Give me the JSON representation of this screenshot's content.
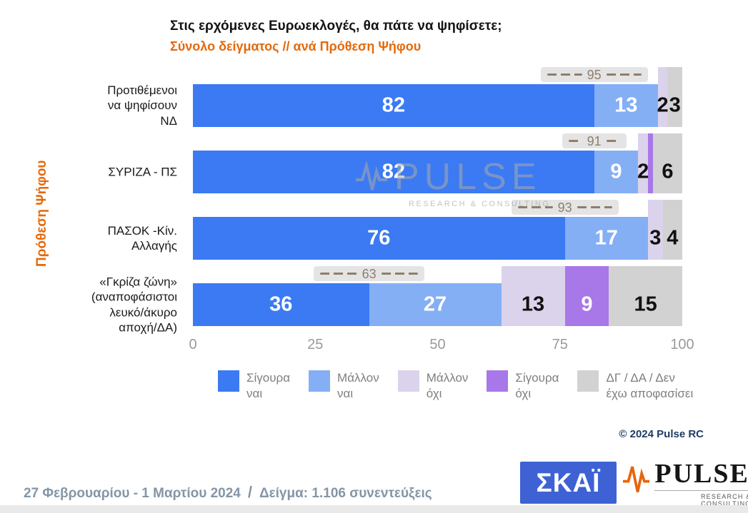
{
  "title": "Στις ερχόμενες Ευρωεκλογές, θα πάτε να ψηφίσετε;",
  "subtitle": "Σύνολο δείγματος // ανά Πρόθεση Ψήφου",
  "y_axis_label": "Πρόθεση Ψήφου",
  "chart_data": {
    "type": "bar",
    "orientation": "horizontal",
    "stacked": true,
    "xlim": [
      0,
      100
    ],
    "x_ticks": [
      0,
      25,
      50,
      75,
      100
    ],
    "grid": false,
    "legend_position": "bottom",
    "categories": [
      "Προτιθέμενοι να ψηφίσουν ΝΔ",
      "ΣΥΡΙΖΑ - ΠΣ",
      "ΠΑΣΟΚ -Κίν. Αλλαγής",
      "«Γκρίζα ζώνη» (αναποφάσιστοι λευκό/άκυρο αποχή/ΔΑ)"
    ],
    "category_lines": [
      [
        "Προτιθέμενοι",
        "να ψηφίσουν",
        "ΝΔ"
      ],
      [
        "ΣΥΡΙΖΑ - ΠΣ"
      ],
      [
        "ΠΑΣΟΚ -Κίν.",
        "Αλλαγής"
      ],
      [
        "«Γκρίζα ζώνη»",
        "(αναποφάσιστοι",
        "λευκό/άκυρο",
        "αποχή/ΔΑ)"
      ]
    ],
    "series": [
      {
        "name": "Σίγουρα ναι",
        "color": "#3B7AF2",
        "values": [
          82,
          82,
          76,
          36
        ]
      },
      {
        "name": "Μάλλον ναι",
        "color": "#84AFF5",
        "values": [
          13,
          9,
          17,
          27
        ]
      },
      {
        "name": "Μάλλον όχι",
        "color": "#DBD3EB",
        "values": [
          2,
          2,
          3,
          13
        ]
      },
      {
        "name": "Σίγουρα όχι",
        "color": "#A877E8",
        "values": [
          0,
          1,
          0,
          9
        ]
      },
      {
        "name": "ΔΓ / ΔΑ / Δεν έχω αποφασίσει",
        "color": "#D2D2D2",
        "values": [
          3,
          6,
          4,
          15
        ]
      }
    ],
    "bracket_totals": [
      95,
      91,
      93,
      63
    ],
    "layout": {
      "bracket_widths": [
        150,
        90,
        150,
        155
      ],
      "row_top": 94,
      "row_pitch": 93,
      "bar_center_offset": 54
    }
  },
  "legend": {
    "items": [
      {
        "lines": [
          "Σίγουρα",
          "ναι"
        ]
      },
      {
        "lines": [
          "Μάλλον",
          "ναι"
        ]
      },
      {
        "lines": [
          "Μάλλον",
          "όχι"
        ]
      },
      {
        "lines": [
          "Σίγουρα",
          "όχι"
        ]
      },
      {
        "lines": [
          "ΔΓ / ΔΑ / Δεν",
          "έχω αποφασίσει"
        ]
      }
    ]
  },
  "watermark": {
    "line1": "PULSE",
    "line2": "RESEARCH & CONSULTING"
  },
  "copyright": "© 2024 Pulse RC",
  "footer": {
    "date_range": "27 Φεβρουαρίου - 1 Μαρτίου 2024",
    "separator": "/",
    "sample_label": "Δείγμα:",
    "sample_value": "1.106 συνεντεύξεις",
    "skai_logo_text": "ΣΚΑΪ",
    "pulse_logo_text": "PULSE",
    "pulse_logo_subtext": "RESEARCH & CONSULTING"
  },
  "colors": {
    "accent_orange": "#E4690B",
    "bracket_brown": "#8F7E6B",
    "footer_text": "#8496A6",
    "skai_blue": "#3E62D4",
    "copyright_navy": "#1F3B64"
  }
}
